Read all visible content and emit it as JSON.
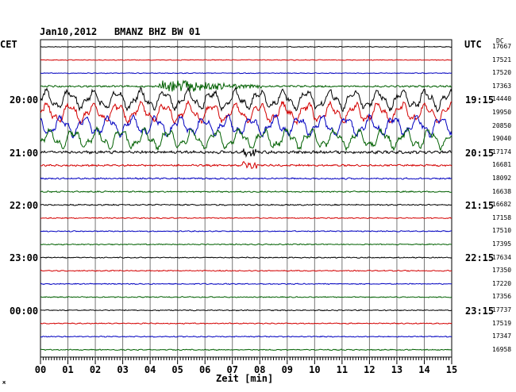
{
  "header": {
    "date": "Jan10,2012",
    "station": "BMANZ BHZ BW 01"
  },
  "left_tz": "CET",
  "right_tz": "UTC",
  "dc_label": "DC",
  "xlabel": "Zeit [min]",
  "corner_mark": "ж",
  "colors": {
    "black": "#000000",
    "red": "#d40000",
    "blue": "#0000c0",
    "green": "#006000",
    "grid": "#777777"
  },
  "left_time_labels": [
    "20:00",
    "21:00",
    "22:00",
    "23:00",
    "00:00"
  ],
  "right_time_labels": [
    "19:15",
    "20:15",
    "21:15",
    "22:15",
    "23:15"
  ],
  "x_ticks": [
    "00",
    "01",
    "02",
    "03",
    "04",
    "05",
    "06",
    "07",
    "08",
    "09",
    "10",
    "11",
    "12",
    "13",
    "14",
    "15"
  ],
  "trace_offsets": [
    "17667",
    "17521",
    "17520",
    "17363",
    "14440",
    "19950",
    "20850",
    "19040",
    "17174",
    "16681",
    "18092",
    "16638",
    "16682",
    "17158",
    "17510",
    "17395",
    "17634",
    "17350",
    "17220",
    "17356",
    "17737",
    "17519",
    "17347",
    "16958"
  ],
  "trace_colors": [
    "black",
    "red",
    "blue",
    "green"
  ],
  "trace_activity": [
    0.15,
    0.15,
    0.15,
    0.35,
    1.0,
    1.0,
    1.0,
    1.0,
    0.55,
    0.35,
    0.3,
    0.25,
    0.25,
    0.2,
    0.2,
    0.2,
    0.2,
    0.2,
    0.2,
    0.2,
    0.2,
    0.2,
    0.2,
    0.2
  ]
}
